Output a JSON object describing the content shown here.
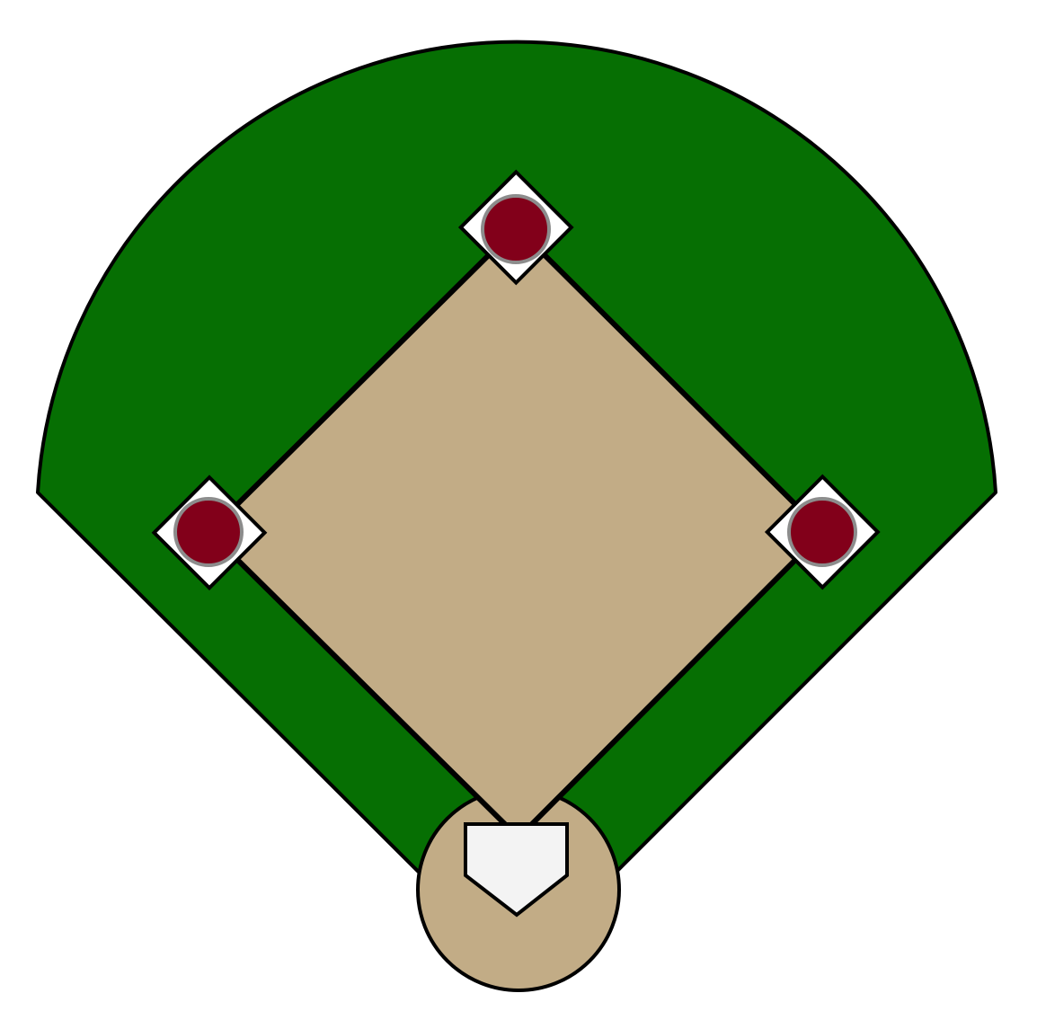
{
  "diagram": {
    "type": "baseball-field",
    "colors": {
      "background": "#ffffff",
      "outfield_grass": "#066f03",
      "infield_dirt": "#c2ac86",
      "base": "#ffffff",
      "home_plate": "#f3f3f3",
      "runner": "#82001a",
      "runner_ring": "#8c8c8c",
      "outline": "#000000"
    },
    "runners_on": [
      "first-base",
      "second-base",
      "third-base"
    ]
  }
}
